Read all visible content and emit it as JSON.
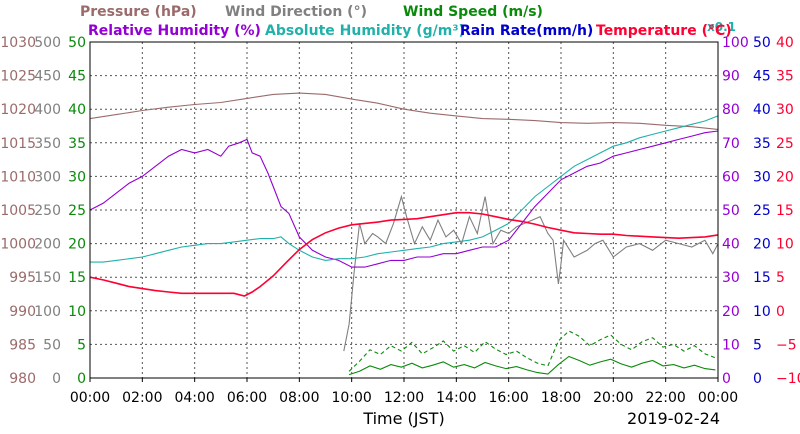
{
  "chart_data": {
    "type": "line",
    "legend": [
      {
        "label": "Pressure (hPa)",
        "color": "#9b6b6b"
      },
      {
        "label": "Wind Direction (°)",
        "color": "#808080"
      },
      {
        "label": "Wind Speed (m/s)",
        "color": "#0a8a0a"
      },
      {
        "label": "Relative Humidity (%)",
        "color": "#9400d3"
      },
      {
        "label": "Absolute Humidity (g/m³)",
        "color": "#20b2aa"
      },
      {
        "label": "x0.1",
        "color": "#20b2aa"
      },
      {
        "label": "Rain Rate(mm/h)",
        "color": "#0000cd"
      },
      {
        "label": "Temperature (°C)",
        "color": "#ff0033"
      }
    ],
    "xlabel": "Time (JST)",
    "date": "2019-02-24",
    "x_ticks": [
      "00:00",
      "02:00",
      "04:00",
      "06:00",
      "08:00",
      "10:00",
      "12:00",
      "14:00",
      "16:00",
      "18:00",
      "20:00",
      "22:00",
      "00:00"
    ],
    "x_range_hours": [
      0,
      24
    ],
    "axes": {
      "pressure": {
        "range": [
          980,
          1030
        ],
        "ticks": [
          "980",
          "985",
          "990",
          "995",
          "1000",
          "1005",
          "1010",
          "1015",
          "1020",
          "1025",
          "1030"
        ],
        "color": "#9b6b6b"
      },
      "wind_direction": {
        "range": [
          0,
          500
        ],
        "ticks": [
          "0",
          "50",
          "100",
          "150",
          "200",
          "250",
          "300",
          "350",
          "400",
          "450",
          "500"
        ],
        "color": "#808080"
      },
      "wind_speed": {
        "range": [
          0,
          50
        ],
        "ticks": [
          "0",
          "5",
          "10",
          "15",
          "20",
          "25",
          "30",
          "35",
          "40",
          "45",
          "50"
        ],
        "color": "#0a8a0a"
      },
      "humidity": {
        "range": [
          0,
          100
        ],
        "ticks": [
          "0",
          "10",
          "20",
          "30",
          "40",
          "50",
          "60",
          "70",
          "80",
          "90",
          "100"
        ],
        "color": "#9400d3"
      },
      "rain": {
        "range": [
          0,
          50
        ],
        "ticks": [
          "0",
          "5",
          "10",
          "15",
          "20",
          "25",
          "30",
          "35",
          "40",
          "45",
          "50"
        ],
        "color": "#0000cd"
      },
      "temperature": {
        "range": [
          -10,
          40
        ],
        "ticks": [
          "−10",
          "−5",
          "0",
          "5",
          "10",
          "15",
          "20",
          "25",
          "30",
          "35",
          "40"
        ],
        "color": "#ff0033"
      }
    },
    "grid": true,
    "series": [
      {
        "key": "pressure",
        "axis": "pressure",
        "color": "#9b6b6b",
        "dash": "",
        "x": [
          0,
          1,
          2,
          3,
          4,
          5,
          6,
          7,
          8,
          9,
          10,
          11,
          12,
          13,
          14,
          15,
          16,
          17,
          18,
          19,
          20,
          21,
          22,
          23,
          24
        ],
        "y": [
          1018.6,
          1019.2,
          1019.8,
          1020.3,
          1020.7,
          1021.0,
          1021.6,
          1022.2,
          1022.4,
          1022.2,
          1021.5,
          1020.9,
          1020.0,
          1019.4,
          1019.0,
          1018.6,
          1018.5,
          1018.3,
          1018.0,
          1017.9,
          1018.0,
          1017.9,
          1017.6,
          1017.4,
          1017.0
        ]
      },
      {
        "key": "wind_direction",
        "axis": "wind_direction",
        "color": "#808080",
        "dash": "",
        "x": [
          9.7,
          9.9,
          10.1,
          10.3,
          10.5,
          10.8,
          11.0,
          11.3,
          11.6,
          11.9,
          12.1,
          12.4,
          12.7,
          13.0,
          13.3,
          13.6,
          13.9,
          14.2,
          14.5,
          14.8,
          15.1,
          15.4,
          15.7,
          16.0,
          16.3,
          16.6,
          16.9,
          17.2,
          17.5,
          17.7,
          17.9,
          18.0,
          18.1,
          18.5,
          19.0,
          19.3,
          19.6,
          20.0,
          20.5,
          21.0,
          21.5,
          22.0,
          22.5,
          23.0,
          23.5,
          23.8,
          24.0
        ],
        "y": [
          40,
          80,
          160,
          230,
          200,
          215,
          210,
          200,
          230,
          270,
          240,
          200,
          225,
          205,
          235,
          210,
          220,
          200,
          240,
          215,
          270,
          200,
          220,
          215,
          225,
          230,
          235,
          240,
          215,
          205,
          140,
          170,
          205,
          180,
          190,
          200,
          205,
          180,
          195,
          200,
          190,
          205,
          200,
          195,
          205,
          185,
          200
        ]
      },
      {
        "key": "wind_speed_avg",
        "axis": "wind_speed",
        "color": "#0a8a0a",
        "dash": "",
        "x": [
          9.9,
          10.3,
          10.7,
          11.1,
          11.5,
          11.9,
          12.3,
          12.7,
          13.1,
          13.5,
          13.9,
          14.3,
          14.7,
          15.1,
          15.5,
          15.9,
          16.3,
          16.7,
          17.1,
          17.5,
          17.9,
          18.3,
          18.7,
          19.1,
          19.5,
          19.9,
          20.3,
          20.7,
          21.1,
          21.5,
          21.9,
          22.3,
          22.7,
          23.1,
          23.5,
          23.9
        ],
        "y": [
          0.5,
          1.0,
          1.8,
          1.3,
          2.0,
          1.6,
          2.2,
          1.5,
          1.9,
          2.4,
          1.6,
          2.0,
          1.5,
          2.3,
          1.8,
          1.4,
          1.7,
          1.2,
          0.8,
          0.6,
          2.0,
          3.2,
          2.6,
          1.9,
          2.4,
          2.8,
          2.1,
          1.6,
          2.2,
          2.6,
          1.8,
          2.0,
          1.5,
          1.9,
          1.4,
          1.2
        ]
      },
      {
        "key": "wind_speed_gust",
        "axis": "wind_speed",
        "color": "#0a8a0a",
        "dash": "4,3",
        "x": [
          9.9,
          10.3,
          10.7,
          11.1,
          11.5,
          11.9,
          12.3,
          12.7,
          13.1,
          13.5,
          13.9,
          14.3,
          14.7,
          15.1,
          15.5,
          15.9,
          16.3,
          16.7,
          17.1,
          17.5,
          17.9,
          18.3,
          18.7,
          19.1,
          19.5,
          19.9,
          20.3,
          20.7,
          21.1,
          21.5,
          21.9,
          22.3,
          22.7,
          23.1,
          23.5,
          23.9
        ],
        "y": [
          1.0,
          2.5,
          4.2,
          3.5,
          4.8,
          4.0,
          5.3,
          3.6,
          4.5,
          5.5,
          4.0,
          4.8,
          3.8,
          5.4,
          4.3,
          3.5,
          4.0,
          3.0,
          2.2,
          1.8,
          5.5,
          7.0,
          6.2,
          4.8,
          5.7,
          6.4,
          5.0,
          4.2,
          5.4,
          6.0,
          4.6,
          5.0,
          4.0,
          4.8,
          3.6,
          3.0
        ]
      },
      {
        "key": "relative_humidity",
        "axis": "humidity",
        "color": "#9400d3",
        "dash": "",
        "x": [
          0,
          0.5,
          1,
          1.5,
          2,
          2.5,
          3,
          3.5,
          4,
          4.5,
          5,
          5.3,
          5.7,
          6.0,
          6.2,
          6.5,
          6.8,
          7.0,
          7.3,
          7.6,
          8.0,
          8.5,
          9,
          9.5,
          10,
          10.5,
          11,
          11.5,
          12,
          12.5,
          13,
          13.5,
          14,
          14.5,
          15,
          15.5,
          16,
          16.5,
          17,
          17.5,
          18,
          18.5,
          19,
          19.5,
          20,
          20.5,
          21,
          21.5,
          22,
          22.5,
          23,
          23.5,
          24
        ],
        "y": [
          50,
          52,
          55,
          58,
          60,
          63,
          66,
          68,
          67,
          68,
          66,
          69,
          70,
          71,
          67,
          66,
          61,
          57,
          51,
          49,
          42,
          38,
          36,
          35,
          33,
          33,
          34,
          35,
          35,
          36,
          36,
          37,
          37,
          38,
          39,
          39,
          41,
          46,
          51,
          55,
          59,
          61,
          63,
          64,
          66,
          67,
          68,
          69,
          70,
          71,
          72,
          73,
          73.5
        ]
      },
      {
        "key": "absolute_humidity",
        "axis": "humidity",
        "color": "#20b2aa",
        "dash": "",
        "x": [
          0,
          0.5,
          1,
          1.5,
          2,
          2.5,
          3,
          3.5,
          4,
          4.5,
          5,
          5.5,
          6,
          6.5,
          7,
          7.3,
          7.6,
          8,
          8.5,
          9,
          9.5,
          10,
          10.5,
          11,
          11.5,
          12,
          12.5,
          13,
          13.5,
          14,
          14.5,
          15,
          15.5,
          16,
          16.5,
          17,
          17.5,
          18,
          18.5,
          19,
          19.5,
          20,
          20.5,
          21,
          21.5,
          22,
          22.5,
          23,
          23.5,
          24
        ],
        "y": [
          34.5,
          34.5,
          35,
          35.5,
          36,
          37,
          38,
          39,
          39.5,
          40,
          40,
          40.5,
          41,
          41.5,
          41.5,
          42,
          40,
          38,
          36,
          35,
          35.5,
          35.5,
          36,
          37,
          37.5,
          38,
          38.5,
          39,
          40,
          40.5,
          41,
          42,
          44,
          46,
          50,
          54,
          57,
          60,
          63,
          65,
          67,
          69,
          70,
          71.5,
          72.5,
          73.5,
          74.5,
          75.5,
          76.5,
          78
        ]
      },
      {
        "key": "rain_rate",
        "axis": "rain",
        "color": "#0000cd",
        "dash": "",
        "x": [
          0,
          24
        ],
        "y": [
          0,
          0
        ]
      },
      {
        "key": "temperature",
        "axis": "temperature",
        "color": "#ff0033",
        "dash": "",
        "x": [
          0,
          0.5,
          1,
          1.5,
          2,
          2.5,
          3,
          3.5,
          4,
          4.5,
          5,
          5.5,
          5.9,
          6.2,
          6.5,
          7,
          7.5,
          8,
          8.5,
          9,
          9.5,
          10,
          10.5,
          11,
          11.5,
          12,
          12.5,
          13,
          13.5,
          14,
          14.5,
          15,
          15.5,
          16,
          16.5,
          17,
          17.5,
          18,
          18.5,
          19,
          19.5,
          20,
          20.5,
          21,
          21.5,
          22,
          22.5,
          23,
          23.5,
          24
        ],
        "y": [
          5,
          4.6,
          4.1,
          3.6,
          3.3,
          3.0,
          2.8,
          2.6,
          2.6,
          2.6,
          2.6,
          2.6,
          2.2,
          2.8,
          3.6,
          5.2,
          7.2,
          9.1,
          10.6,
          11.6,
          12.3,
          12.8,
          13.0,
          13.2,
          13.5,
          13.6,
          13.7,
          14.0,
          14.3,
          14.6,
          14.6,
          14.4,
          14.0,
          13.6,
          13.3,
          12.9,
          12.4,
          12.0,
          11.6,
          11.5,
          11.4,
          11.4,
          11.2,
          11.1,
          11.0,
          10.9,
          10.8,
          10.9,
          11.0,
          11.3
        ]
      }
    ]
  }
}
